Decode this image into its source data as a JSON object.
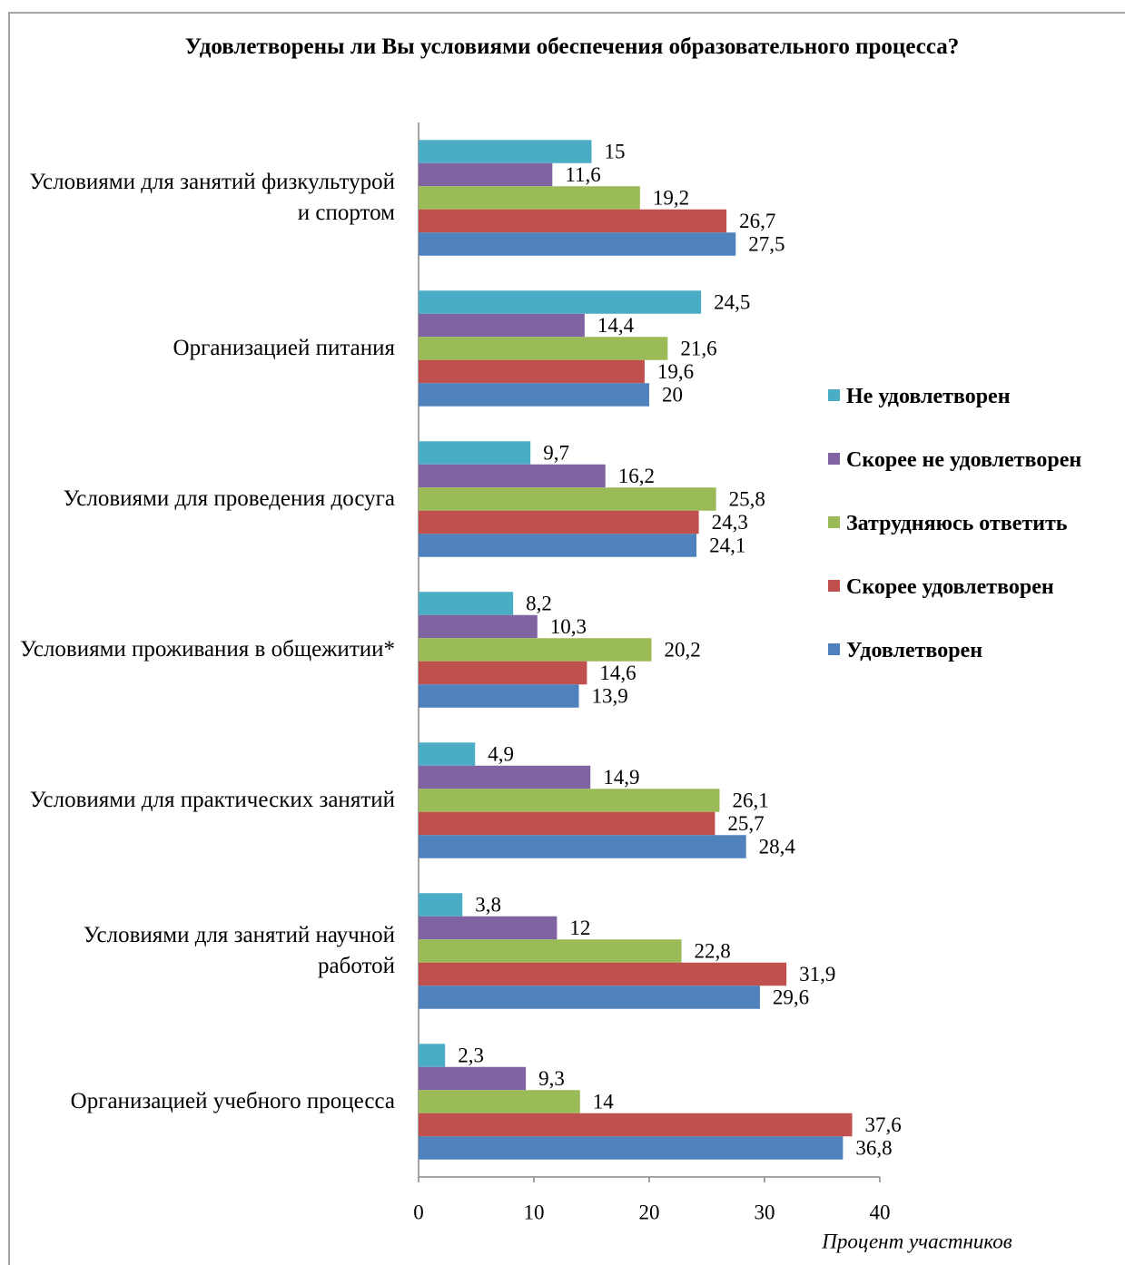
{
  "chart_data": {
    "type": "hbar",
    "title": "Удовлетворены ли Вы условиями обеспечения образовательного процесса?",
    "x_label": "Процент участников",
    "categories": [
      "Условиями для занятий физкультурой и спортом",
      "Организацией питания",
      "Условиями для проведения досуга",
      "Условиями проживания в общежитии*",
      "Условиями для практических занятий",
      "Условиями для занятий научной работой",
      "Организацией учебного процесса"
    ],
    "series": [
      {
        "name": "Не удовлетворен",
        "color": "#4bacc6",
        "values": [
          15,
          24.5,
          9.7,
          8.2,
          4.9,
          3.8,
          2.3
        ],
        "value_labels": [
          "15",
          "24,5",
          "9,7",
          "8,2",
          "4,9",
          "3,8",
          "2,3"
        ]
      },
      {
        "name": "Скорее не удовлетворен",
        "color": "#8064a2",
        "values": [
          11.6,
          14.4,
          16.2,
          10.3,
          14.9,
          12,
          9.3
        ],
        "value_labels": [
          "11,6",
          "14,4",
          "16,2",
          "10,3",
          "14,9",
          "12",
          "9,3"
        ]
      },
      {
        "name": "Затрудняюсь ответить",
        "color": "#9bbb59",
        "values": [
          19.2,
          21.6,
          25.8,
          20.2,
          26.1,
          22.8,
          14
        ],
        "value_labels": [
          "19,2",
          "21,6",
          "25,8",
          "20,2",
          "26,1",
          "22,8",
          "14"
        ]
      },
      {
        "name": "Скорее удовлетворен",
        "color": "#c0504d",
        "values": [
          26.7,
          19.6,
          24.3,
          14.6,
          25.7,
          31.9,
          37.6
        ],
        "value_labels": [
          "26,7",
          "19,6",
          "24,3",
          "14,6",
          "25,7",
          "31,9",
          "37,6"
        ]
      },
      {
        "name": "Удовлетворен",
        "color": "#4f81bd",
        "values": [
          27.5,
          20,
          24.1,
          13.9,
          28.4,
          29.6,
          36.8
        ],
        "value_labels": [
          "27,5",
          "20",
          "24,1",
          "13,9",
          "28,4",
          "29,6",
          "36,8"
        ]
      }
    ],
    "xlim": [
      0,
      40
    ],
    "xticks": [
      0,
      10,
      20,
      30,
      40
    ],
    "grid": false,
    "legend": "right"
  }
}
